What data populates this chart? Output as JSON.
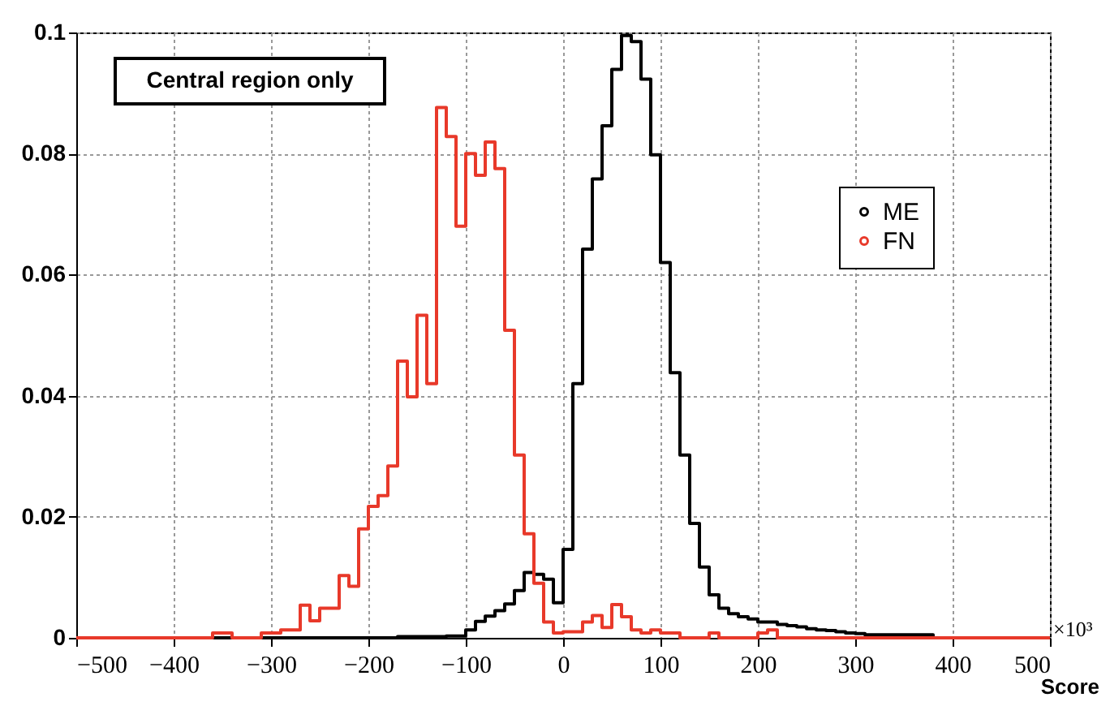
{
  "chart_data": {
    "type": "histogram",
    "xlabel": "Score",
    "annotations": [
      "Central region only",
      "×10³"
    ],
    "bins": [
      -500,
      -490,
      -480,
      -470,
      -460,
      -450,
      -440,
      -430,
      -420,
      -410,
      -400,
      -390,
      -380,
      -370,
      -360,
      -350,
      -340,
      -330,
      -320,
      -310,
      -300,
      -290,
      -280,
      -270,
      -260,
      -250,
      -240,
      -230,
      -220,
      -210,
      -200,
      -190,
      -180,
      -170,
      -160,
      -150,
      -140,
      -130,
      -120,
      -110,
      -100,
      -90,
      -80,
      -70,
      -60,
      -50,
      -40,
      -30,
      -20,
      -10,
      0,
      10,
      20,
      30,
      40,
      50,
      60,
      70,
      80,
      90,
      100,
      110,
      120,
      130,
      140,
      150,
      160,
      170,
      180,
      190,
      200,
      210,
      220,
      230,
      240,
      250,
      260,
      270,
      280,
      290,
      300,
      310,
      320,
      330,
      340,
      350,
      360,
      370,
      380,
      390,
      400,
      410,
      420,
      430,
      440,
      450,
      460,
      470,
      480,
      490,
      500
    ],
    "series": [
      {
        "name": "ME",
        "color": "#000000",
        "values": [
          0,
          0,
          0,
          0,
          0,
          0,
          0,
          0,
          0,
          0,
          0,
          0,
          0,
          0,
          0,
          0,
          0,
          0,
          0,
          0,
          0,
          0,
          0,
          0,
          0,
          0,
          0,
          0,
          0,
          0,
          0,
          0,
          0,
          0.0002,
          0.0002,
          0.0002,
          0.0002,
          0.0002,
          0.0003,
          0.0003,
          0.0013,
          0.0027,
          0.0036,
          0.0045,
          0.0056,
          0.0078,
          0.0108,
          0.0105,
          0.0097,
          0.0058,
          0.0146,
          0.042,
          0.0642,
          0.0758,
          0.0846,
          0.0939,
          0.0995,
          0.0985,
          0.0923,
          0.0798,
          0.062,
          0.0438,
          0.0302,
          0.0189,
          0.0117,
          0.0071,
          0.0049,
          0.004,
          0.0035,
          0.0031,
          0.0026,
          0.0026,
          0.0022,
          0.002,
          0.0018,
          0.0015,
          0.0013,
          0.0012,
          0.001,
          0.0008,
          0.0007,
          0.0005,
          0.0005,
          0.0005,
          0.0005,
          0.0005,
          0.0005,
          0.0005,
          0,
          0,
          0,
          0,
          0,
          0,
          0,
          0,
          0,
          0,
          0,
          0
        ]
      },
      {
        "name": "FN",
        "color": "#e8392a",
        "values": [
          0,
          0,
          0,
          0,
          0,
          0,
          0,
          0,
          0,
          0,
          0,
          0,
          0,
          0,
          0.0008,
          0.0008,
          0,
          0,
          0,
          0.0008,
          0.0008,
          0.0013,
          0.0013,
          0.0054,
          0.0028,
          0.0049,
          0.0049,
          0.0103,
          0.0085,
          0.018,
          0.0217,
          0.0235,
          0.0284,
          0.0457,
          0.0398,
          0.0533,
          0.042,
          0.0876,
          0.0828,
          0.068,
          0.08,
          0.0764,
          0.0819,
          0.0775,
          0.0508,
          0.0302,
          0.0172,
          0.009,
          0.0026,
          0.0008,
          0.001,
          0.001,
          0.0026,
          0.0037,
          0.0017,
          0.0055,
          0.0035,
          0.0013,
          0.0008,
          0.0013,
          0.0008,
          0.0008,
          0,
          0,
          0,
          0.0008,
          0,
          0,
          0,
          0,
          0.0008,
          0.0013,
          0,
          0,
          0,
          0,
          0,
          0,
          0,
          0,
          0,
          0,
          0,
          0,
          0,
          0,
          0,
          0,
          0,
          0,
          0,
          0,
          0,
          0,
          0,
          0,
          0,
          0,
          0,
          0
        ]
      }
    ],
    "xlim": [
      -500,
      500
    ],
    "xticks": [
      -500,
      -400,
      -300,
      -200,
      -100,
      0,
      100,
      200,
      300,
      400,
      500
    ],
    "ylim": [
      0,
      0.1
    ],
    "yticks": [
      0,
      0.02,
      0.04,
      0.06,
      0.08,
      0.1
    ],
    "grid": true,
    "legend": "right"
  }
}
